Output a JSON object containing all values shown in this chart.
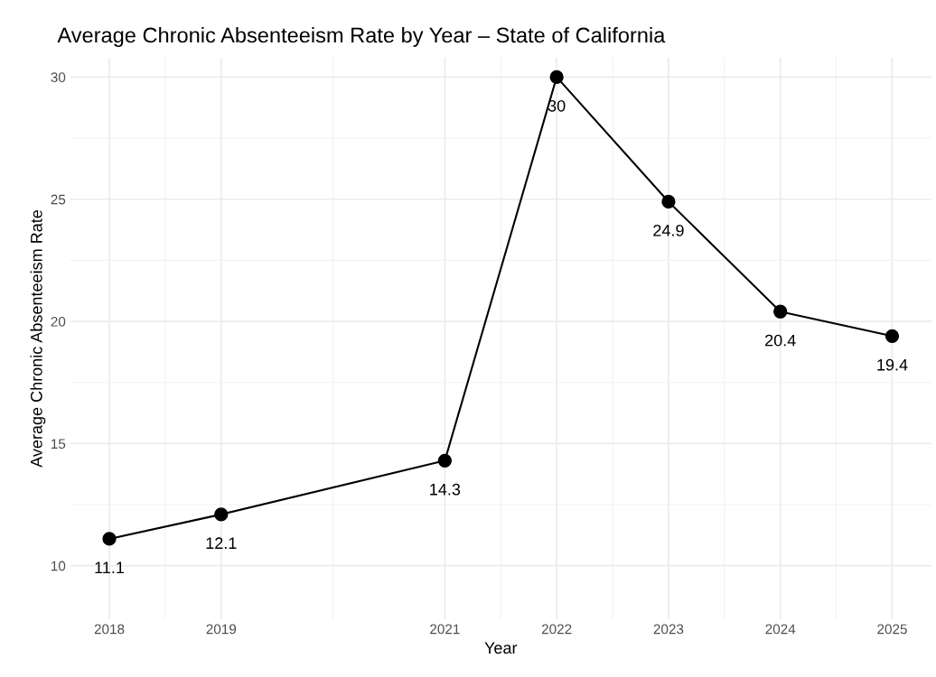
{
  "chart_data": {
    "type": "line",
    "title": "Average Chronic Absenteeism Rate by Year – State of California",
    "xlabel": "Year",
    "ylabel": "Average Chronic Absenteeism Rate",
    "x": [
      2018,
      2019,
      2021,
      2022,
      2023,
      2024,
      2025
    ],
    "series": [
      {
        "color": "#000000",
        "values": [
          11.1,
          12.1,
          14.3,
          30,
          24.9,
          20.4,
          19.4
        ]
      }
    ],
    "xlim": [
      2017.65,
      2025.35
    ],
    "ylim": [
      7.8,
      30.8
    ],
    "xticks": [
      2018,
      2019,
      {
        "value": 2018.5,
        "label": null
      },
      {
        "value": 2020,
        "label": null
      },
      2021,
      {
        "value": 2021.5,
        "label": null
      },
      2022,
      {
        "value": 2022.5,
        "label": null
      },
      2023,
      {
        "value": 2023.5,
        "label": null
      },
      2024,
      {
        "value": 2024.5,
        "label": null
      },
      2025
    ],
    "yticks": [
      10,
      {
        "value": 12.5,
        "label": null
      },
      15,
      {
        "value": 17.5,
        "label": null
      },
      20,
      {
        "value": 22.5,
        "label": null
      },
      25,
      {
        "value": 27.5,
        "label": null
      },
      30
    ],
    "grid": true,
    "marker": "circle",
    "line_style": "solid",
    "data_labels": true,
    "legend": false
  }
}
